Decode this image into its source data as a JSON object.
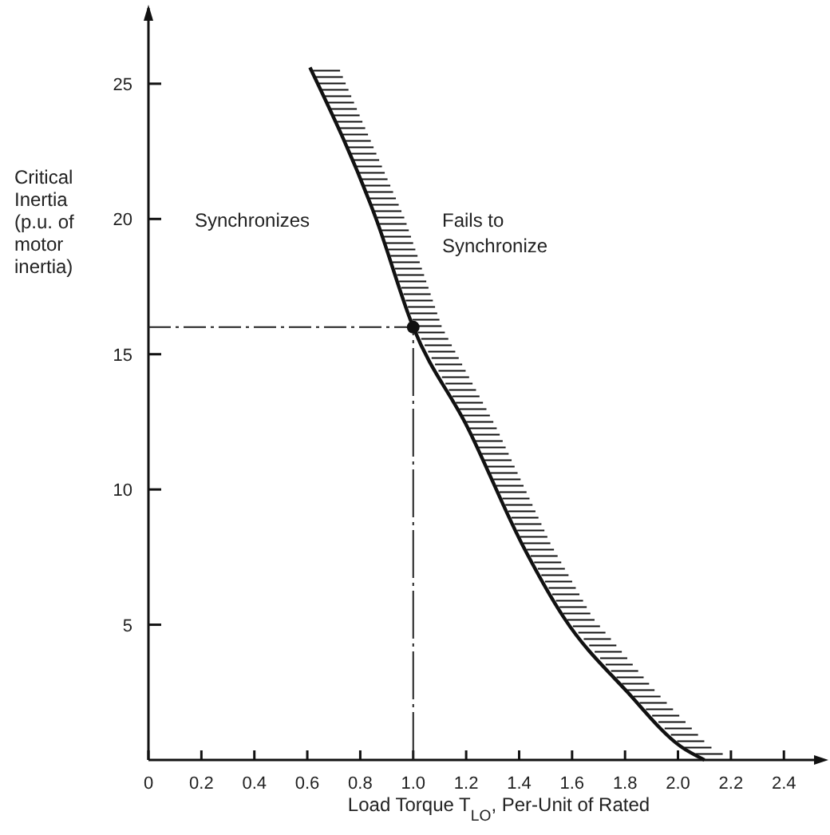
{
  "chart_data": {
    "type": "line",
    "xlabel": "Load Torque T$_{LO}$, Per-Unit of Rated",
    "ylabel": "Critical Inertia (p.u. of motor inertia)",
    "xlim": [
      0,
      2.55
    ],
    "ylim": [
      0,
      27.8
    ],
    "xticks": [
      0,
      0.2,
      0.4,
      0.6,
      0.8,
      {
        "value": 1,
        "label": "1.0"
      },
      1.2,
      1.4,
      1.6,
      1.8,
      {
        "value": 2,
        "label": "2.0"
      },
      2.2,
      2.4
    ],
    "yticks": [
      5,
      10,
      15,
      20,
      25
    ],
    "grid": false,
    "series": [
      {
        "color": "#111111",
        "marker": "none",
        "x": [
          0.61,
          0.86,
          1.0,
          1.205,
          1.41,
          1.57,
          1.81,
          2.01,
          2.1
        ],
        "values": [
          25.6,
          20,
          16,
          12.3,
          8,
          5.25,
          2.5,
          0.5,
          0
        ]
      },
      {
        "type": "scatter",
        "color": "#111111",
        "marker": "circle",
        "x": [
          1.0
        ],
        "values": [
          16
        ]
      }
    ],
    "ref_lines": [
      {
        "axis": "y",
        "value": 16,
        "line_style": "dashed"
      },
      {
        "axis": "x",
        "value": 1.0,
        "line_style": "dashed"
      }
    ],
    "annotations": [
      "Synchronizes",
      "Fails to Synchronize"
    ]
  }
}
